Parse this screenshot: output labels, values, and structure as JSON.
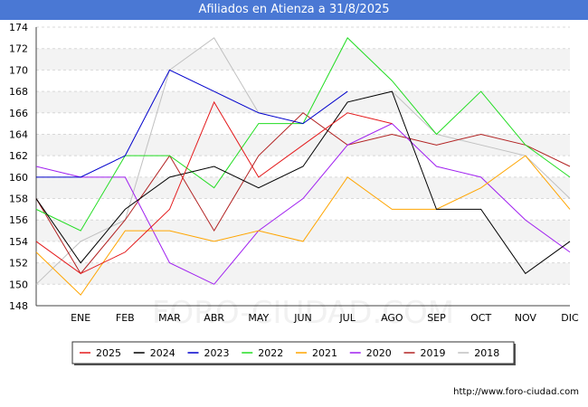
{
  "header": {
    "title": "Afiliados en Atienza a 31/8/2025"
  },
  "footer": {
    "url": "http://www.foro-ciudad.com"
  },
  "watermark": "FORO-CIUDAD.COM",
  "chart_data": {
    "type": "line",
    "title": "Afiliados en Atienza a 31/8/2025",
    "categories": [
      "",
      "ENE",
      "FEB",
      "MAR",
      "ABR",
      "MAY",
      "JUN",
      "JUL",
      "AGO",
      "SEP",
      "OCT",
      "NOV",
      "DIC"
    ],
    "ylim": [
      148,
      174
    ],
    "yticks": [
      148,
      150,
      152,
      154,
      156,
      158,
      160,
      162,
      164,
      166,
      168,
      170,
      172,
      174
    ],
    "grid": true,
    "legend_position": "bottom",
    "series": [
      {
        "name": "2025",
        "color": "#e41a1c",
        "values": [
          154,
          151,
          153,
          157,
          167,
          160,
          163,
          166,
          165,
          null,
          null,
          null,
          null
        ]
      },
      {
        "name": "2024",
        "color": "#000000",
        "values": [
          158,
          152,
          157,
          160,
          161,
          159,
          161,
          167,
          168,
          157,
          157,
          151,
          154
        ]
      },
      {
        "name": "2023",
        "color": "#0000cc",
        "values": [
          160,
          160,
          162,
          170,
          168,
          166,
          165,
          168,
          null,
          null,
          null,
          null,
          null
        ]
      },
      {
        "name": "2022",
        "color": "#22dd22",
        "values": [
          157,
          155,
          162,
          162,
          159,
          165,
          165,
          173,
          169,
          164,
          168,
          163,
          160
        ]
      },
      {
        "name": "2021",
        "color": "#ffa500",
        "values": [
          153,
          149,
          155,
          155,
          154,
          155,
          154,
          160,
          157,
          157,
          159,
          162,
          157
        ]
      },
      {
        "name": "2020",
        "color": "#a020f0",
        "values": [
          161,
          160,
          160,
          152,
          150,
          155,
          158,
          163,
          165,
          161,
          160,
          156,
          153
        ]
      },
      {
        "name": "2019",
        "color": "#b22222",
        "values": [
          158,
          151,
          156,
          162,
          155,
          162,
          166,
          163,
          164,
          163,
          164,
          163,
          161
        ]
      },
      {
        "name": "2018",
        "color": "#c0c0c0",
        "values": [
          150,
          154,
          156,
          170,
          173,
          166,
          166,
          null,
          168,
          164,
          163,
          162,
          158
        ]
      }
    ]
  }
}
